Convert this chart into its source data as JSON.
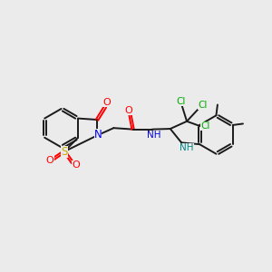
{
  "bg_color": "#ebebeb",
  "bond_color": "#1a1a1a",
  "bond_lw": 1.4,
  "atom_colors": {
    "O": "#ff0000",
    "N": "#0000ee",
    "S": "#ccaa00",
    "Cl": "#00aa00",
    "NH_amide": "#0000ee",
    "NH_aryl": "#008888"
  },
  "figsize": [
    3.0,
    3.0
  ],
  "dpi": 100
}
